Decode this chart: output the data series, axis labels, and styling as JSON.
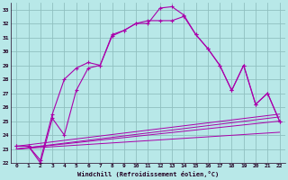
{
  "title": "",
  "xlabel": "Windchill (Refroidissement éolien,°C)",
  "bg_color": "#b8e8e8",
  "grid_color": "#90c0c0",
  "line_color": "#aa00aa",
  "xlim": [
    -0.5,
    22.5
  ],
  "ylim": [
    22,
    33.5
  ],
  "xticks": [
    0,
    1,
    2,
    3,
    4,
    5,
    6,
    7,
    8,
    9,
    10,
    11,
    12,
    13,
    14,
    15,
    16,
    17,
    18,
    19,
    20,
    21,
    22
  ],
  "yticks": [
    22,
    23,
    24,
    25,
    26,
    27,
    28,
    29,
    30,
    31,
    32,
    33
  ],
  "curve1_x": [
    0,
    1,
    2,
    3,
    4,
    5,
    6,
    7,
    8,
    9,
    10,
    11,
    12,
    13,
    14,
    15,
    16,
    17,
    18,
    19,
    20,
    21,
    22
  ],
  "curve1_y": [
    23.2,
    23.2,
    22.0,
    25.2,
    24.0,
    27.2,
    28.8,
    29.0,
    31.2,
    31.5,
    32.0,
    32.0,
    33.1,
    33.2,
    32.6,
    31.2,
    30.2,
    29.0,
    27.2,
    29.0,
    26.2,
    27.0,
    25.0
  ],
  "curve2_x": [
    0,
    1,
    2,
    3,
    4,
    5,
    6,
    7,
    8,
    9,
    10,
    11,
    12,
    13,
    14,
    15,
    16,
    17,
    18,
    19,
    20,
    21,
    22
  ],
  "curve2_y": [
    23.2,
    23.2,
    22.2,
    25.5,
    28.0,
    28.8,
    29.2,
    29.0,
    31.1,
    31.5,
    32.0,
    32.2,
    32.2,
    32.2,
    32.5,
    31.2,
    30.2,
    29.0,
    27.2,
    29.0,
    26.2,
    27.0,
    25.0
  ],
  "line3_x": [
    0,
    22
  ],
  "line3_y": [
    23.0,
    25.0
  ],
  "line4_x": [
    0,
    22
  ],
  "line4_y": [
    23.2,
    25.5
  ],
  "line5_x": [
    0,
    22
  ],
  "line5_y": [
    23.0,
    24.2
  ],
  "line6_x": [
    0,
    22
  ],
  "line6_y": [
    23.0,
    25.3
  ]
}
